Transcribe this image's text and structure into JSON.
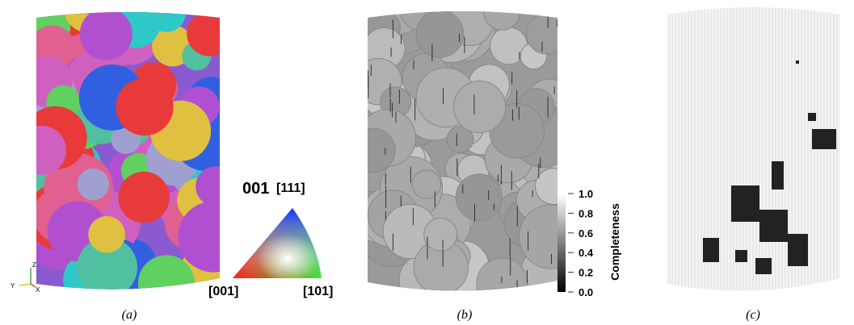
{
  "panel_a": {
    "ipf_title": "001",
    "corners": [
      "[111]",
      "[001]",
      "[101]"
    ],
    "axes": [
      "Z",
      "Y",
      "X"
    ],
    "caption": "(a)"
  },
  "panel_b": {
    "colorbar": {
      "label": "Completeness",
      "ticks": [
        {
          "value": 1,
          "label": "1.0"
        },
        {
          "value": 0.8,
          "label": "0.8"
        },
        {
          "value": 0.6,
          "label": "0.6"
        },
        {
          "value": 0.4,
          "label": "0.4"
        },
        {
          "value": 0.2,
          "label": "0.2"
        },
        {
          "value": 0,
          "label": "0.0"
        }
      ]
    },
    "caption": "(b)"
  },
  "panel_c": {
    "caption": "(c)"
  }
}
